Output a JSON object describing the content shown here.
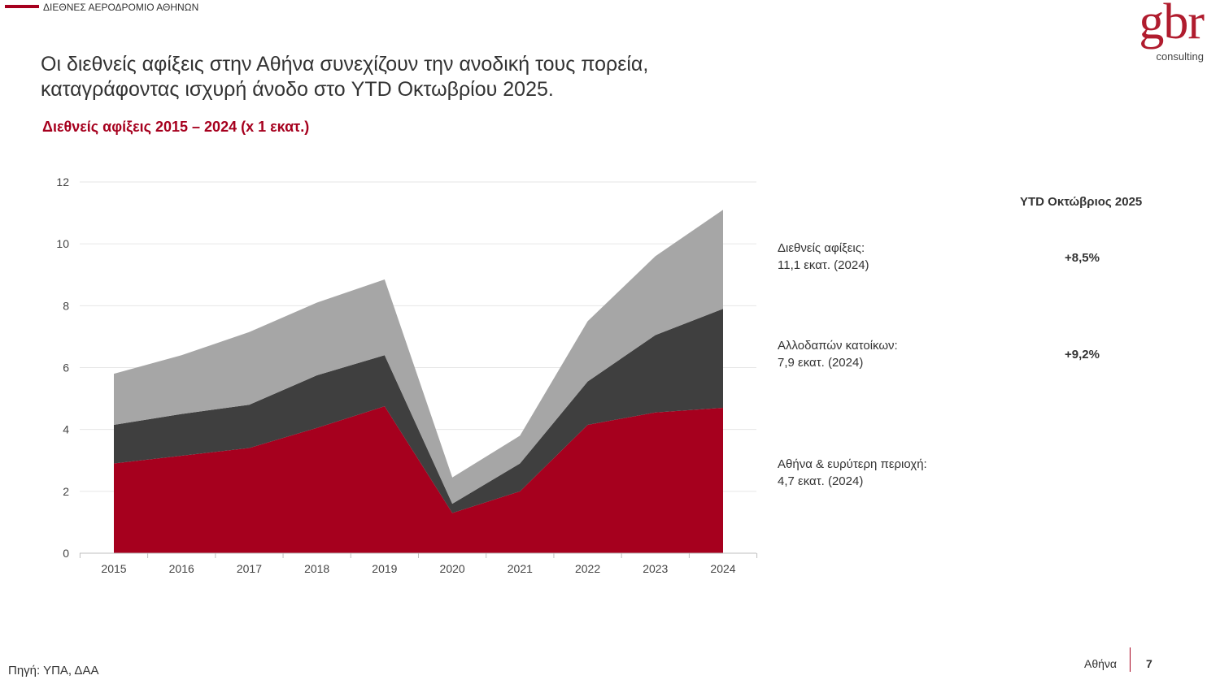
{
  "header": {
    "section": "ΔΙΕΘΝΕΣ ΑΕΡΟΔΡΟΜΙΟ ΑΘΗΝΩΝ",
    "logo_main": "gbr",
    "logo_sub": "consulting",
    "headline_line1": "Οι διεθνείς αφίξεις στην Αθήνα συνεχίζουν την ανοδική τους πορεία,",
    "headline_line2": "καταγράφοντας ισχυρή άνοδο στο YTD Οκτωβρίου 2025."
  },
  "chart_data": {
    "type": "area",
    "stacked": true,
    "title": "Διεθνείς αφίξεις 2015 – 2024 (x 1 εκατ.)",
    "x": [
      "2015",
      "2016",
      "2017",
      "2018",
      "2019",
      "2020",
      "2021",
      "2022",
      "2023",
      "2024"
    ],
    "ylim": [
      0,
      12
    ],
    "yticks": [
      0,
      2,
      4,
      6,
      8,
      10,
      12
    ],
    "grid": true,
    "series": [
      {
        "name": "Αθήνα & ευρύτερη περιοχή",
        "color": "#a6001e",
        "values": [
          2.9,
          3.15,
          3.4,
          4.05,
          4.75,
          1.3,
          2.0,
          4.15,
          4.55,
          4.7
        ]
      },
      {
        "name": "Αλλοδαπών κατοίκων (υπόλοιπο)",
        "color": "#3f3f3f",
        "values": [
          1.25,
          1.35,
          1.4,
          1.7,
          1.65,
          0.3,
          0.9,
          1.4,
          2.5,
          3.2
        ]
      },
      {
        "name": "Διεθνείς αφίξεις (υπόλοιπο)",
        "color": "#a6a6a6",
        "values": [
          1.65,
          1.9,
          2.35,
          2.35,
          2.45,
          0.85,
          0.9,
          1.95,
          2.55,
          3.2
        ]
      }
    ]
  },
  "side": {
    "ytd_title": "YTD Οκτώβριος 2025",
    "items": [
      {
        "line1": "Διεθνείς αφίξεις:",
        "line2": "11,1 εκατ. (2024)",
        "pct": "+8,5%"
      },
      {
        "line1": "Αλλοδαπών κατοίκων:",
        "line2": "7,9 εκατ. (2024)",
        "pct": "+9,2%"
      },
      {
        "line1": "Αθήνα & ευρύτερη περιοχή:",
        "line2": "4,7 εκατ. (2024)",
        "pct": ""
      }
    ]
  },
  "footer": {
    "source": "Πηγή: ΥΠΑ, ΔΑΑ",
    "place": "Αθήνα",
    "page": "7"
  }
}
